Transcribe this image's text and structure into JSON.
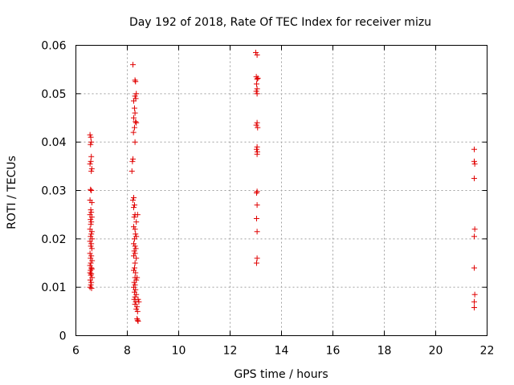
{
  "chart_data": {
    "type": "scatter",
    "title": "Day 192 of 2018, Rate Of TEC Index for receiver mizu",
    "xlabel": "GPS time / hours",
    "ylabel": "ROTI / TECUs",
    "xlim": [
      6,
      22
    ],
    "ylim": [
      0,
      0.06
    ],
    "x_ticks": [
      6,
      8,
      10,
      12,
      14,
      16,
      18,
      20,
      22
    ],
    "y_ticks": [
      0,
      0.01,
      0.02,
      0.03,
      0.04,
      0.05,
      0.06
    ],
    "x_tick_labels": [
      "6",
      "8",
      "10",
      "12",
      "14",
      "16",
      "18",
      "20",
      "22"
    ],
    "y_tick_labels": [
      "0",
      "0.01",
      "0.02",
      "0.03",
      "0.04",
      "0.05",
      "0.06"
    ],
    "grid": true,
    "marker": "+",
    "marker_color": "#e00000",
    "series": [
      {
        "name": "ROTI",
        "points": [
          [
            6.55,
            0.0415
          ],
          [
            6.58,
            0.041
          ],
          [
            6.6,
            0.04
          ],
          [
            6.57,
            0.0395
          ],
          [
            6.6,
            0.037
          ],
          [
            6.58,
            0.036
          ],
          [
            6.55,
            0.0355
          ],
          [
            6.62,
            0.0345
          ],
          [
            6.6,
            0.034
          ],
          [
            6.57,
            0.0302
          ],
          [
            6.6,
            0.03
          ],
          [
            6.55,
            0.028
          ],
          [
            6.62,
            0.0275
          ],
          [
            6.58,
            0.026
          ],
          [
            6.6,
            0.0255
          ],
          [
            6.55,
            0.025
          ],
          [
            6.62,
            0.0245
          ],
          [
            6.57,
            0.024
          ],
          [
            6.6,
            0.0235
          ],
          [
            6.58,
            0.023
          ],
          [
            6.55,
            0.022
          ],
          [
            6.62,
            0.0215
          ],
          [
            6.6,
            0.021
          ],
          [
            6.57,
            0.0205
          ],
          [
            6.63,
            0.02
          ],
          [
            6.55,
            0.0195
          ],
          [
            6.6,
            0.019
          ],
          [
            6.58,
            0.0185
          ],
          [
            6.62,
            0.018
          ],
          [
            6.55,
            0.017
          ],
          [
            6.6,
            0.0165
          ],
          [
            6.57,
            0.016
          ],
          [
            6.63,
            0.0155
          ],
          [
            6.58,
            0.015
          ],
          [
            6.55,
            0.0145
          ],
          [
            6.6,
            0.014
          ],
          [
            6.62,
            0.0138
          ],
          [
            6.57,
            0.0135
          ],
          [
            6.55,
            0.013
          ],
          [
            6.6,
            0.0128
          ],
          [
            6.58,
            0.0125
          ],
          [
            6.63,
            0.012
          ],
          [
            6.56,
            0.0115
          ],
          [
            6.6,
            0.011
          ],
          [
            6.58,
            0.0105
          ],
          [
            6.55,
            0.01
          ],
          [
            6.61,
            0.0098
          ],
          [
            8.22,
            0.056
          ],
          [
            8.3,
            0.0528
          ],
          [
            8.32,
            0.0525
          ],
          [
            8.35,
            0.05
          ],
          [
            8.3,
            0.0495
          ],
          [
            8.33,
            0.049
          ],
          [
            8.25,
            0.0485
          ],
          [
            8.28,
            0.047
          ],
          [
            8.3,
            0.046
          ],
          [
            8.25,
            0.045
          ],
          [
            8.32,
            0.0442
          ],
          [
            8.35,
            0.044
          ],
          [
            8.28,
            0.043
          ],
          [
            8.24,
            0.042
          ],
          [
            8.3,
            0.04
          ],
          [
            8.22,
            0.0365
          ],
          [
            8.2,
            0.036
          ],
          [
            8.18,
            0.034
          ],
          [
            8.25,
            0.0285
          ],
          [
            8.22,
            0.028
          ],
          [
            8.28,
            0.027
          ],
          [
            8.25,
            0.0265
          ],
          [
            8.3,
            0.025
          ],
          [
            8.27,
            0.0245
          ],
          [
            8.35,
            0.0235
          ],
          [
            8.25,
            0.0225
          ],
          [
            8.3,
            0.022
          ],
          [
            8.32,
            0.021
          ],
          [
            8.35,
            0.0205
          ],
          [
            8.28,
            0.02
          ],
          [
            8.25,
            0.019
          ],
          [
            8.3,
            0.0185
          ],
          [
            8.33,
            0.018
          ],
          [
            8.27,
            0.0175
          ],
          [
            8.3,
            0.017
          ],
          [
            8.25,
            0.0165
          ],
          [
            8.35,
            0.016
          ],
          [
            8.3,
            0.015
          ],
          [
            8.28,
            0.014
          ],
          [
            8.25,
            0.0135
          ],
          [
            8.32,
            0.013
          ],
          [
            8.3,
            0.012
          ],
          [
            8.35,
            0.0115
          ],
          [
            8.27,
            0.011
          ],
          [
            8.3,
            0.0105
          ],
          [
            8.25,
            0.01
          ],
          [
            8.32,
            0.0095
          ],
          [
            8.28,
            0.009
          ],
          [
            8.35,
            0.0085
          ],
          [
            8.3,
            0.008
          ],
          [
            8.27,
            0.0075
          ],
          [
            8.33,
            0.007
          ],
          [
            8.3,
            0.0065
          ],
          [
            8.38,
            0.006
          ],
          [
            8.35,
            0.0055
          ],
          [
            8.4,
            0.005
          ],
          [
            8.42,
            0.0075
          ],
          [
            8.45,
            0.007
          ],
          [
            8.38,
            0.0035
          ],
          [
            8.42,
            0.003
          ],
          [
            8.4,
            0.0032
          ],
          [
            8.4,
            0.025
          ],
          [
            8.38,
            0.012
          ],
          [
            13.0,
            0.0585
          ],
          [
            13.05,
            0.058
          ],
          [
            13.02,
            0.0535
          ],
          [
            13.08,
            0.0532
          ],
          [
            13.05,
            0.053
          ],
          [
            13.03,
            0.052
          ],
          [
            13.05,
            0.051
          ],
          [
            13.02,
            0.0505
          ],
          [
            13.05,
            0.05
          ],
          [
            13.05,
            0.044
          ],
          [
            13.02,
            0.0435
          ],
          [
            13.07,
            0.043
          ],
          [
            13.05,
            0.039
          ],
          [
            13.03,
            0.0385
          ],
          [
            13.06,
            0.038
          ],
          [
            13.05,
            0.0375
          ],
          [
            13.05,
            0.0298
          ],
          [
            13.03,
            0.0295
          ],
          [
            13.05,
            0.027
          ],
          [
            13.03,
            0.0242
          ],
          [
            13.05,
            0.0215
          ],
          [
            13.05,
            0.016
          ],
          [
            13.03,
            0.015
          ],
          [
            21.5,
            0.0385
          ],
          [
            21.5,
            0.036
          ],
          [
            21.52,
            0.0355
          ],
          [
            21.5,
            0.0325
          ],
          [
            21.52,
            0.022
          ],
          [
            21.5,
            0.0205
          ],
          [
            21.5,
            0.014
          ],
          [
            21.52,
            0.0085
          ],
          [
            21.5,
            0.007
          ],
          [
            21.5,
            0.0058
          ]
        ]
      }
    ]
  }
}
